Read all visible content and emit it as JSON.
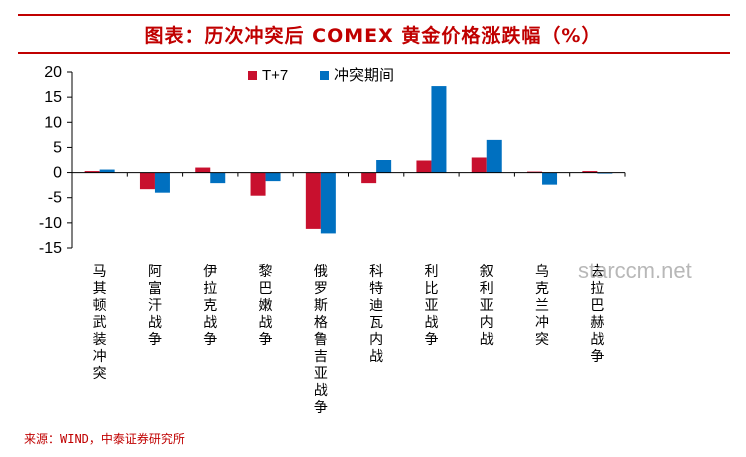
{
  "title": "图表：历次冲突后 COMEX 黄金价格涨跌幅（%）",
  "source": "来源：WIND，中泰证券研究所",
  "watermark": "starccm.net",
  "colors": {
    "accent": "#c00000",
    "series_t7": "#c8102e",
    "series_period": "#0070c0"
  },
  "chart_data": {
    "type": "bar",
    "title": "图表：历次冲突后 COMEX 黄金价格涨跌幅（%）",
    "xlabel": "",
    "ylabel": "",
    "ylim": [
      -15,
      20
    ],
    "yticks": [
      20,
      15,
      10,
      5,
      0,
      -5,
      -10,
      -15
    ],
    "legend": "top-center",
    "grid": false,
    "categories": [
      "马其顿武装冲突",
      "阿富汗战争",
      "伊拉克战争",
      "黎巴嫩战争",
      "俄罗斯格鲁吉亚战争",
      "科特迪瓦内战",
      "利比亚战争",
      "叙利亚内战",
      "乌克兰冲突",
      "去拉巴赫战争"
    ],
    "series": [
      {
        "name": "T+7",
        "values": [
          0.3,
          -3.3,
          1.0,
          -4.6,
          -11.2,
          -2.1,
          2.4,
          3.0,
          0.2,
          0.3
        ]
      },
      {
        "name": "冲突期间",
        "values": [
          0.6,
          -4.0,
          -2.1,
          -1.7,
          -12.1,
          2.5,
          17.2,
          6.5,
          -2.4,
          -0.2
        ]
      }
    ]
  }
}
